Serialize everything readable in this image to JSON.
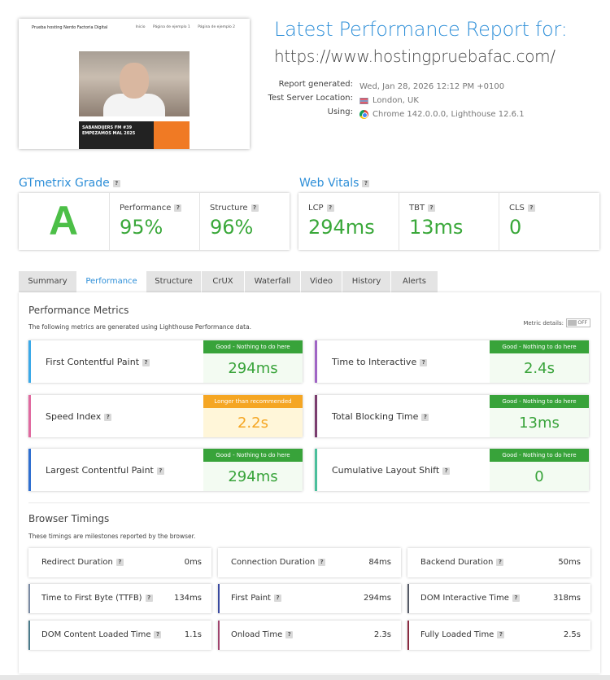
{
  "thumbnail": {
    "site_title": "Prueba hosting Nerdo Factoria Digital",
    "nav": [
      "Inicio",
      "Página de ejemplo 1",
      "Página de ejemplo 2"
    ],
    "card_text": "SABANDIJERS FM #39 EMPEZAMOS MAL 2025"
  },
  "header": {
    "title": "Latest Performance Report for:",
    "url": "https://www.hostingpruebafac.com/",
    "meta": [
      {
        "key": "Report generated:",
        "value": "Wed, Jan 28, 2026 12:12 PM +0100"
      },
      {
        "key": "Test Server Location:",
        "value": "London, UK"
      },
      {
        "key": "Using:",
        "value": "Chrome 142.0.0.0, Lighthouse 12.6.1"
      }
    ]
  },
  "grade": {
    "heading": "GTmetrix Grade",
    "letter": "A",
    "performance_label": "Performance",
    "performance_value": "95%",
    "structure_label": "Structure",
    "structure_value": "96%"
  },
  "vitals": {
    "heading": "Web Vitals",
    "items": [
      {
        "label": "LCP",
        "value": "294ms"
      },
      {
        "label": "TBT",
        "value": "13ms"
      },
      {
        "label": "CLS",
        "value": "0"
      }
    ]
  },
  "tabs": [
    "Summary",
    "Performance",
    "Structure",
    "CrUX",
    "Waterfall",
    "Video",
    "History",
    "Alerts"
  ],
  "active_tab": "Performance",
  "performance": {
    "heading": "Performance Metrics",
    "description": "The following metrics are generated using Lighthouse Performance data.",
    "metric_details_label": "Metric details:",
    "toggle_state": "OFF",
    "metrics": [
      {
        "name": "First Contentful Paint",
        "badge": "Good - Nothing to do here",
        "value": "294ms",
        "color": "#3ba9e8"
      },
      {
        "name": "Time to Interactive",
        "badge": "Good - Nothing to do here",
        "value": "2.4s",
        "color": "#a065c5"
      },
      {
        "name": "Speed Index",
        "badge": "Longer than recommended",
        "value": "2.2s",
        "color": "#e06aa0"
      },
      {
        "name": "Total Blocking Time",
        "badge": "Good - Nothing to do here",
        "value": "13ms",
        "color": "#7a3d6e"
      },
      {
        "name": "Largest Contentful Paint",
        "badge": "Good - Nothing to do here",
        "value": "294ms",
        "color": "#2f6fd0"
      },
      {
        "name": "Cumulative Layout Shift",
        "badge": "Good - Nothing to do here",
        "value": "0",
        "color": "#4bbf9c"
      }
    ]
  },
  "timings": {
    "heading": "Browser Timings",
    "description": "These timings are milestones reported by the browser.",
    "items": [
      {
        "name": "Redirect Duration",
        "value": "0ms",
        "color": "#ffffff"
      },
      {
        "name": "Connection Duration",
        "value": "84ms",
        "color": "#ffffff"
      },
      {
        "name": "Backend Duration",
        "value": "50ms",
        "color": "#ffffff"
      },
      {
        "name": "Time to First Byte (TTFB)",
        "value": "134ms",
        "color": "#7a8aa3"
      },
      {
        "name": "First Paint",
        "value": "294ms",
        "color": "#3a4aa0"
      },
      {
        "name": "DOM Interactive Time",
        "value": "318ms",
        "color": "#555a66"
      },
      {
        "name": "DOM Content Loaded Time",
        "value": "1.1s",
        "color": "#4a7a8a"
      },
      {
        "name": "Onload Time",
        "value": "2.3s",
        "color": "#a0446e"
      },
      {
        "name": "Fully Loaded Time",
        "value": "2.5s",
        "color": "#8a2a40"
      }
    ]
  }
}
